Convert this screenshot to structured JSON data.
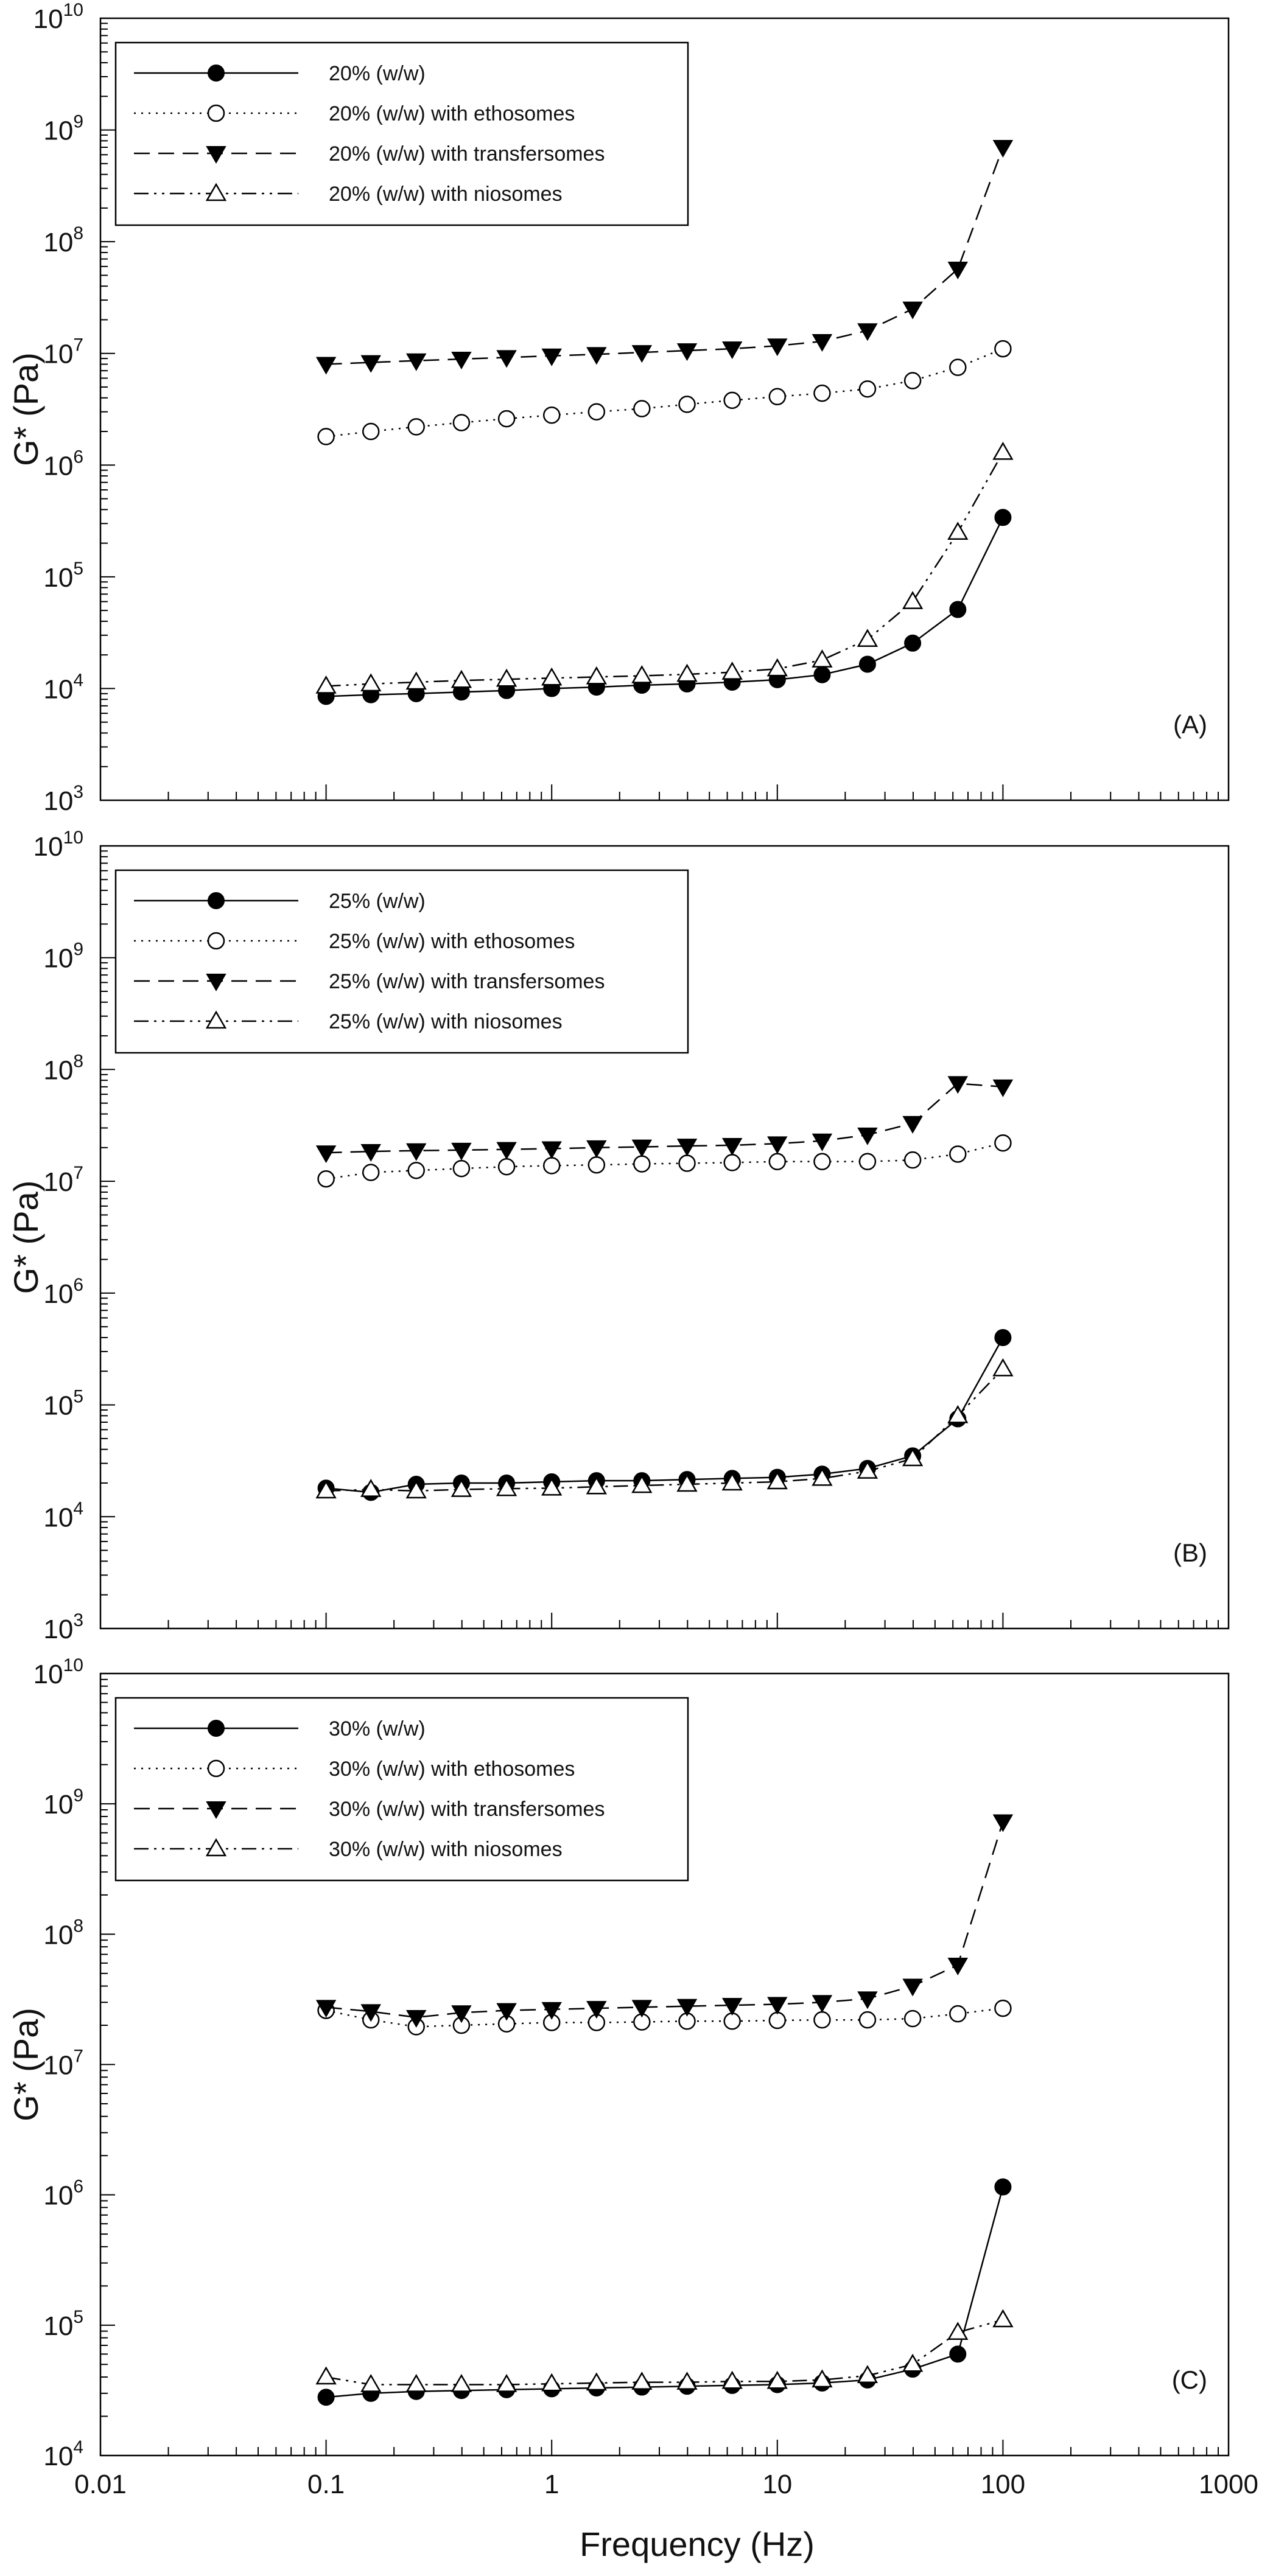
{
  "figure": {
    "x_axis_title": "Frequency (Hz)",
    "x_tick_labels": [
      "0.01",
      "0.1",
      "1",
      "10",
      "100",
      "1000"
    ],
    "y_tick_base": "10"
  },
  "chart_data": [
    {
      "type": "line",
      "scale": "log-log",
      "panel_label": "(A)",
      "xlabel": "Frequency (Hz)",
      "ylabel": "G* (Pa)",
      "xlim": [
        0.01,
        1000
      ],
      "ylim": [
        1000,
        10000000000
      ],
      "y_tick_exponents": [
        3,
        4,
        5,
        6,
        7,
        8,
        9,
        10
      ],
      "legend_position": "top-left",
      "x": [
        0.1,
        0.158,
        0.251,
        0.398,
        0.631,
        1,
        1.58,
        2.51,
        3.98,
        6.31,
        10,
        15.8,
        25.1,
        39.8,
        63.1,
        100
      ],
      "series": [
        {
          "name": "20% (w/w)",
          "marker": "filled-circle",
          "line": "solid",
          "values": [
            8500,
            8800,
            9000,
            9300,
            9600,
            10000,
            10300,
            10700,
            11000,
            11400,
            12000,
            13300,
            16500,
            25500,
            51000,
            340000
          ]
        },
        {
          "name": "20% (w/w) with ethosomes",
          "marker": "open-circle",
          "line": "dotted",
          "values": [
            1800000,
            2000000,
            2200000,
            2400000,
            2600000,
            2800000,
            3000000,
            3200000,
            3500000,
            3800000,
            4100000,
            4400000,
            4800000,
            5700000,
            7500000,
            11000000
          ]
        },
        {
          "name": "20% (w/w) with transfersomes",
          "marker": "filled-triangle-down",
          "line": "dashed",
          "values": [
            8000000,
            8300000,
            8600000,
            8900000,
            9200000,
            9500000,
            9800000,
            10200000,
            10600000,
            11000000,
            11700000,
            12800000,
            16000000,
            25000000,
            57000000,
            700000000
          ]
        },
        {
          "name": "20% (w/w) with niosomes",
          "marker": "open-triangle-up",
          "line": "dash-dot-dot",
          "values": [
            10500,
            11000,
            11400,
            11800,
            12100,
            12400,
            12700,
            13000,
            13400,
            14000,
            15000,
            18000,
            27500,
            60000,
            250000,
            1300000
          ]
        }
      ]
    },
    {
      "type": "line",
      "scale": "log-log",
      "panel_label": "(B)",
      "xlabel": "Frequency (Hz)",
      "ylabel": "G* (Pa)",
      "xlim": [
        0.01,
        1000
      ],
      "ylim": [
        1000,
        10000000000
      ],
      "y_tick_exponents": [
        3,
        4,
        5,
        6,
        7,
        8,
        9,
        10
      ],
      "legend_position": "top-left",
      "x": [
        0.1,
        0.158,
        0.251,
        0.398,
        0.631,
        1,
        1.58,
        2.51,
        3.98,
        6.31,
        10,
        15.8,
        25.1,
        39.8,
        63.1,
        100
      ],
      "series": [
        {
          "name": "25% (w/w)",
          "marker": "filled-circle",
          "line": "solid",
          "values": [
            18000,
            16500,
            19500,
            20000,
            20000,
            20500,
            21000,
            21000,
            21500,
            22000,
            22500,
            24000,
            27000,
            35000,
            75000,
            400000
          ]
        },
        {
          "name": "25% (w/w) with ethosomes",
          "marker": "open-circle",
          "line": "dotted",
          "values": [
            10500000,
            12000000,
            12500000,
            13000000,
            13500000,
            13800000,
            14000000,
            14300000,
            14500000,
            14700000,
            15000000,
            15000000,
            15000000,
            15500000,
            17500000,
            22000000
          ]
        },
        {
          "name": "25% (w/w) with transfersomes",
          "marker": "filled-triangle-down",
          "line": "dashed",
          "values": [
            18000000,
            18500000,
            18800000,
            19000000,
            19300000,
            19600000,
            20000000,
            20300000,
            20700000,
            21000000,
            21700000,
            23000000,
            26000000,
            33000000,
            75000000,
            70000000
          ]
        },
        {
          "name": "25% (w/w) with niosomes",
          "marker": "open-triangle-up",
          "line": "dash-dot-dot",
          "values": [
            17000,
            17500,
            17000,
            17500,
            17800,
            18000,
            18500,
            19000,
            19500,
            20000,
            20500,
            22000,
            25500,
            33000,
            80000,
            210000
          ]
        }
      ]
    },
    {
      "type": "line",
      "scale": "log-log",
      "panel_label": "(C)",
      "xlabel": "Frequency (Hz)",
      "ylabel": "G* (Pa)",
      "xlim": [
        0.01,
        1000
      ],
      "ylim": [
        10000,
        10000000000
      ],
      "y_tick_exponents": [
        4,
        5,
        6,
        7,
        8,
        9,
        10
      ],
      "legend_position": "top-left",
      "x": [
        0.1,
        0.158,
        0.251,
        0.398,
        0.631,
        1,
        1.58,
        2.51,
        3.98,
        6.31,
        10,
        15.8,
        25.1,
        39.8,
        63.1,
        100
      ],
      "series": [
        {
          "name": "30% (w/w)",
          "marker": "filled-circle",
          "line": "solid",
          "values": [
            28000,
            30000,
            31000,
            31500,
            32000,
            32500,
            33000,
            33500,
            34000,
            34500,
            35000,
            36000,
            38000,
            46000,
            60000,
            1150000
          ]
        },
        {
          "name": "30% (w/w) with ethosomes",
          "marker": "open-circle",
          "line": "dotted",
          "values": [
            26000000,
            22000000,
            19500000,
            20000000,
            20500000,
            21000000,
            21000000,
            21200000,
            21500000,
            21500000,
            21800000,
            22000000,
            22000000,
            22500000,
            24500000,
            27000000
          ]
        },
        {
          "name": "30% (w/w) with transfersomes",
          "marker": "filled-triangle-down",
          "line": "dashed",
          "values": [
            27500000,
            25500000,
            23000000,
            25000000,
            26000000,
            26500000,
            27000000,
            27500000,
            28000000,
            28500000,
            29000000,
            30000000,
            32000000,
            40000000,
            58000000,
            730000000
          ]
        },
        {
          "name": "30% (w/w) with niosomes",
          "marker": "open-triangle-up",
          "line": "dash-dot-dot",
          "values": [
            40000,
            35000,
            35000,
            35000,
            35000,
            35500,
            36000,
            36500,
            36500,
            37000,
            37000,
            38000,
            41000,
            50000,
            88000,
            110000
          ]
        }
      ]
    }
  ]
}
